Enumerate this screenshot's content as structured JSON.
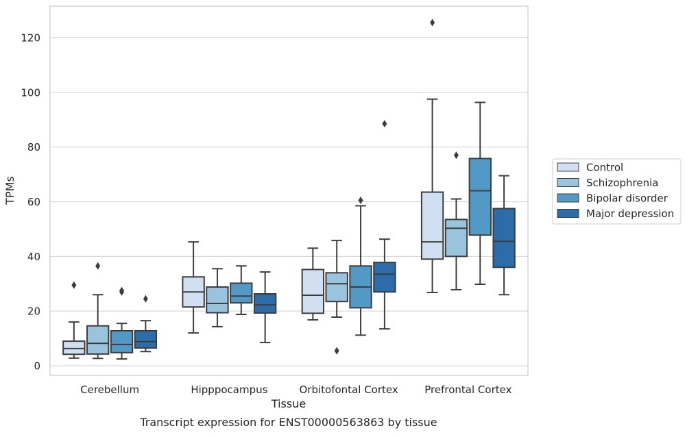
{
  "chart_data": {
    "type": "boxplot",
    "title": "",
    "caption": "Transcript expression for ENST00000563863 by tissue",
    "xlabel": "Tissue",
    "ylabel": "TPMs",
    "ylim": [
      -3.5,
      131.5
    ],
    "yticks": [
      0,
      20,
      40,
      60,
      80,
      100,
      120
    ],
    "grid": true,
    "legend_position": "right",
    "categories": [
      "Cerebellum",
      "Hipppocampus",
      "Orbitofontal Cortex",
      "Prefrontal Cortex"
    ],
    "series": [
      {
        "name": "Control",
        "color": "#d0e0f2",
        "boxes": [
          {
            "whislo": 2.8,
            "q1": 4.2,
            "med": 6.3,
            "q3": 9.0,
            "whishi": 16.0,
            "fliers": [
              29.5
            ]
          },
          {
            "whislo": 12.0,
            "q1": 21.5,
            "med": 27.0,
            "q3": 32.5,
            "whishi": 45.3,
            "fliers": []
          },
          {
            "whislo": 16.8,
            "q1": 19.2,
            "med": 25.8,
            "q3": 35.2,
            "whishi": 43.0,
            "fliers": []
          },
          {
            "whislo": 26.8,
            "q1": 39.0,
            "med": 45.3,
            "q3": 63.5,
            "whishi": 97.5,
            "fliers": [
              125.5
            ]
          }
        ]
      },
      {
        "name": "Schizophrenia",
        "color": "#9ac3de",
        "boxes": [
          {
            "whislo": 2.7,
            "q1": 4.3,
            "med": 8.2,
            "q3": 14.6,
            "whishi": 26.0,
            "fliers": [
              36.5
            ]
          },
          {
            "whislo": 14.3,
            "q1": 19.4,
            "med": 22.8,
            "q3": 28.8,
            "whishi": 35.5,
            "fliers": []
          },
          {
            "whislo": 17.8,
            "q1": 23.5,
            "med": 30.0,
            "q3": 34.0,
            "whishi": 45.8,
            "fliers": [
              5.5
            ]
          },
          {
            "whislo": 27.8,
            "q1": 40.0,
            "med": 50.3,
            "q3": 53.5,
            "whishi": 61.0,
            "fliers": [
              77.0
            ]
          }
        ]
      },
      {
        "name": "Bipolar disorder",
        "color": "#5399c6",
        "boxes": [
          {
            "whislo": 2.5,
            "q1": 4.8,
            "med": 7.8,
            "q3": 12.8,
            "whishi": 15.5,
            "fliers": [
              27.0,
              27.5
            ]
          },
          {
            "whislo": 18.8,
            "q1": 23.0,
            "med": 25.5,
            "q3": 30.2,
            "whishi": 36.5,
            "fliers": []
          },
          {
            "whislo": 11.2,
            "q1": 21.2,
            "med": 28.8,
            "q3": 36.5,
            "whishi": 58.5,
            "fliers": [
              60.5
            ]
          },
          {
            "whislo": 29.8,
            "q1": 47.8,
            "med": 64.0,
            "q3": 75.8,
            "whishi": 96.3,
            "fliers": []
          }
        ]
      },
      {
        "name": "Major depression",
        "color": "#2b6ca9",
        "boxes": [
          {
            "whislo": 5.2,
            "q1": 6.5,
            "med": 8.8,
            "q3": 12.8,
            "whishi": 16.5,
            "fliers": [
              24.5
            ]
          },
          {
            "whislo": 8.5,
            "q1": 19.3,
            "med": 22.3,
            "q3": 26.3,
            "whishi": 34.3,
            "fliers": []
          },
          {
            "whislo": 13.5,
            "q1": 27.0,
            "med": 33.5,
            "q3": 37.8,
            "whishi": 46.3,
            "fliers": [
              88.5
            ]
          },
          {
            "whislo": 26.0,
            "q1": 36.0,
            "med": 45.5,
            "q3": 57.5,
            "whishi": 69.5,
            "fliers": []
          }
        ]
      }
    ]
  }
}
